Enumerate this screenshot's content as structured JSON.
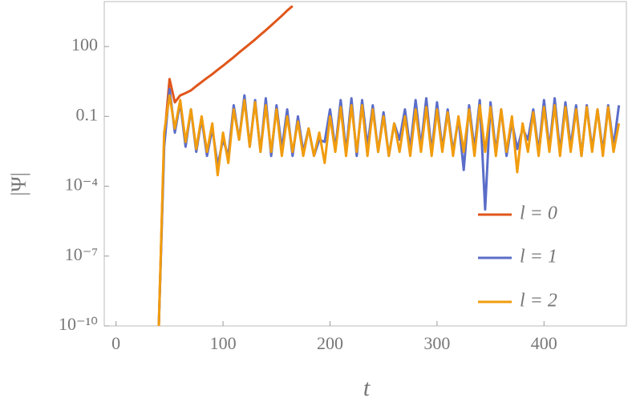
{
  "chart_data": {
    "type": "line",
    "ylabel": "|Ψ|",
    "xlabel": "t",
    "ylog": true,
    "grid": false,
    "legend": "lower right",
    "xlim": [
      -11,
      477
    ],
    "ylim": [
      1e-10,
      8500
    ],
    "xticks": [
      0,
      100,
      200,
      300,
      400
    ],
    "yticks": [
      100,
      0.1,
      {
        "value": 0.0001,
        "label": "10⁻⁴"
      },
      {
        "value": 1e-07,
        "label": "10⁻⁷"
      },
      {
        "value": 1e-10,
        "label": "10⁻¹⁰"
      }
    ],
    "x": [
      40,
      45,
      50,
      55,
      60,
      65,
      70,
      75,
      80,
      85,
      90,
      95,
      100,
      105,
      110,
      115,
      120,
      125,
      130,
      135,
      140,
      145,
      150,
      155,
      160,
      165,
      170,
      175,
      180,
      185,
      190,
      195,
      200,
      205,
      210,
      215,
      220,
      225,
      230,
      235,
      240,
      245,
      250,
      255,
      260,
      265,
      270,
      275,
      280,
      285,
      290,
      295,
      300,
      305,
      310,
      315,
      320,
      325,
      330,
      335,
      340,
      345,
      350,
      355,
      360,
      365,
      370,
      375,
      380,
      385,
      390,
      395,
      400,
      405,
      410,
      415,
      420,
      425,
      430,
      435,
      440,
      445,
      450,
      455,
      460,
      465,
      470
    ],
    "series": [
      {
        "name": "l = 0",
        "color": "#e0561a",
        "values": [
          1e-10,
          0.01,
          4,
          0.4,
          0.8,
          1,
          1.3,
          2,
          3,
          4.5,
          6.5,
          10,
          15,
          23,
          35,
          55,
          85,
          130,
          200,
          320,
          500,
          800,
          1300,
          2100,
          3500,
          5500,
          null,
          null,
          null,
          null,
          null,
          null,
          null,
          null,
          null,
          null,
          null,
          null,
          null,
          null,
          null,
          null,
          null,
          null,
          null,
          null,
          null,
          null,
          null,
          null,
          null,
          null,
          null,
          null,
          null,
          null,
          null,
          null,
          null,
          null,
          null,
          null,
          null,
          null,
          null,
          null,
          null,
          null,
          null,
          null,
          null,
          null,
          null,
          null,
          null,
          null,
          null,
          null,
          null,
          null,
          null,
          null,
          null,
          null,
          null,
          null,
          null
        ]
      },
      {
        "name": "l = 1",
        "color": "#5b6dc8",
        "values": [
          1e-10,
          0.005,
          1.5,
          0.02,
          0.4,
          0.005,
          0.2,
          0.003,
          0.08,
          0.002,
          0.03,
          0.0008,
          0.01,
          0.002,
          0.3,
          0.01,
          0.8,
          0.005,
          0.5,
          0.003,
          0.6,
          0.002,
          0.3,
          0.004,
          0.2,
          0.002,
          0.1,
          0.003,
          0.03,
          0.002,
          0.01,
          0.008,
          0.2,
          0.004,
          0.5,
          0.003,
          0.6,
          0.002,
          0.5,
          0.005,
          0.3,
          0.003,
          0.15,
          0.002,
          0.05,
          0.01,
          0.2,
          0.004,
          0.5,
          0.005,
          0.6,
          0.003,
          0.4,
          0.004,
          0.2,
          0.003,
          0.08,
          0.0005,
          0.3,
          0.004,
          0.5,
          1e-05,
          0.4,
          0.003,
          0.2,
          0.002,
          0.06,
          0.004,
          0.03,
          0.01,
          0.2,
          0.003,
          0.5,
          0.004,
          0.6,
          0.003,
          0.4,
          0.005,
          0.3,
          0.002,
          0.3,
          0.004,
          0.2,
          0.003,
          0.3,
          0.005,
          0.3
        ]
      },
      {
        "name": "l = 2",
        "color": "#f19c0e",
        "values": [
          1e-10,
          0.02,
          0.8,
          0.03,
          0.5,
          0.008,
          0.2,
          0.004,
          0.1,
          0.003,
          0.05,
          0.0003,
          0.02,
          0.001,
          0.2,
          0.01,
          0.5,
          0.005,
          0.4,
          0.003,
          0.3,
          0.003,
          0.2,
          0.002,
          0.1,
          0.003,
          0.06,
          0.002,
          0.03,
          0.002,
          0.02,
          0.001,
          0.1,
          0.003,
          0.25,
          0.002,
          0.3,
          0.003,
          0.3,
          0.002,
          0.2,
          0.003,
          0.1,
          0.002,
          0.05,
          0.003,
          0.1,
          0.002,
          0.2,
          0.003,
          0.25,
          0.002,
          0.2,
          0.003,
          0.15,
          0.002,
          0.1,
          0.003,
          0.2,
          0.002,
          0.3,
          0.003,
          0.25,
          0.002,
          0.2,
          0.003,
          0.1,
          0.0004,
          0.05,
          0.003,
          0.15,
          0.002,
          0.25,
          0.003,
          0.3,
          0.002,
          0.25,
          0.003,
          0.2,
          0.002,
          0.25,
          0.003,
          0.2,
          0.002,
          0.25,
          0.003,
          0.05
        ]
      }
    ]
  }
}
